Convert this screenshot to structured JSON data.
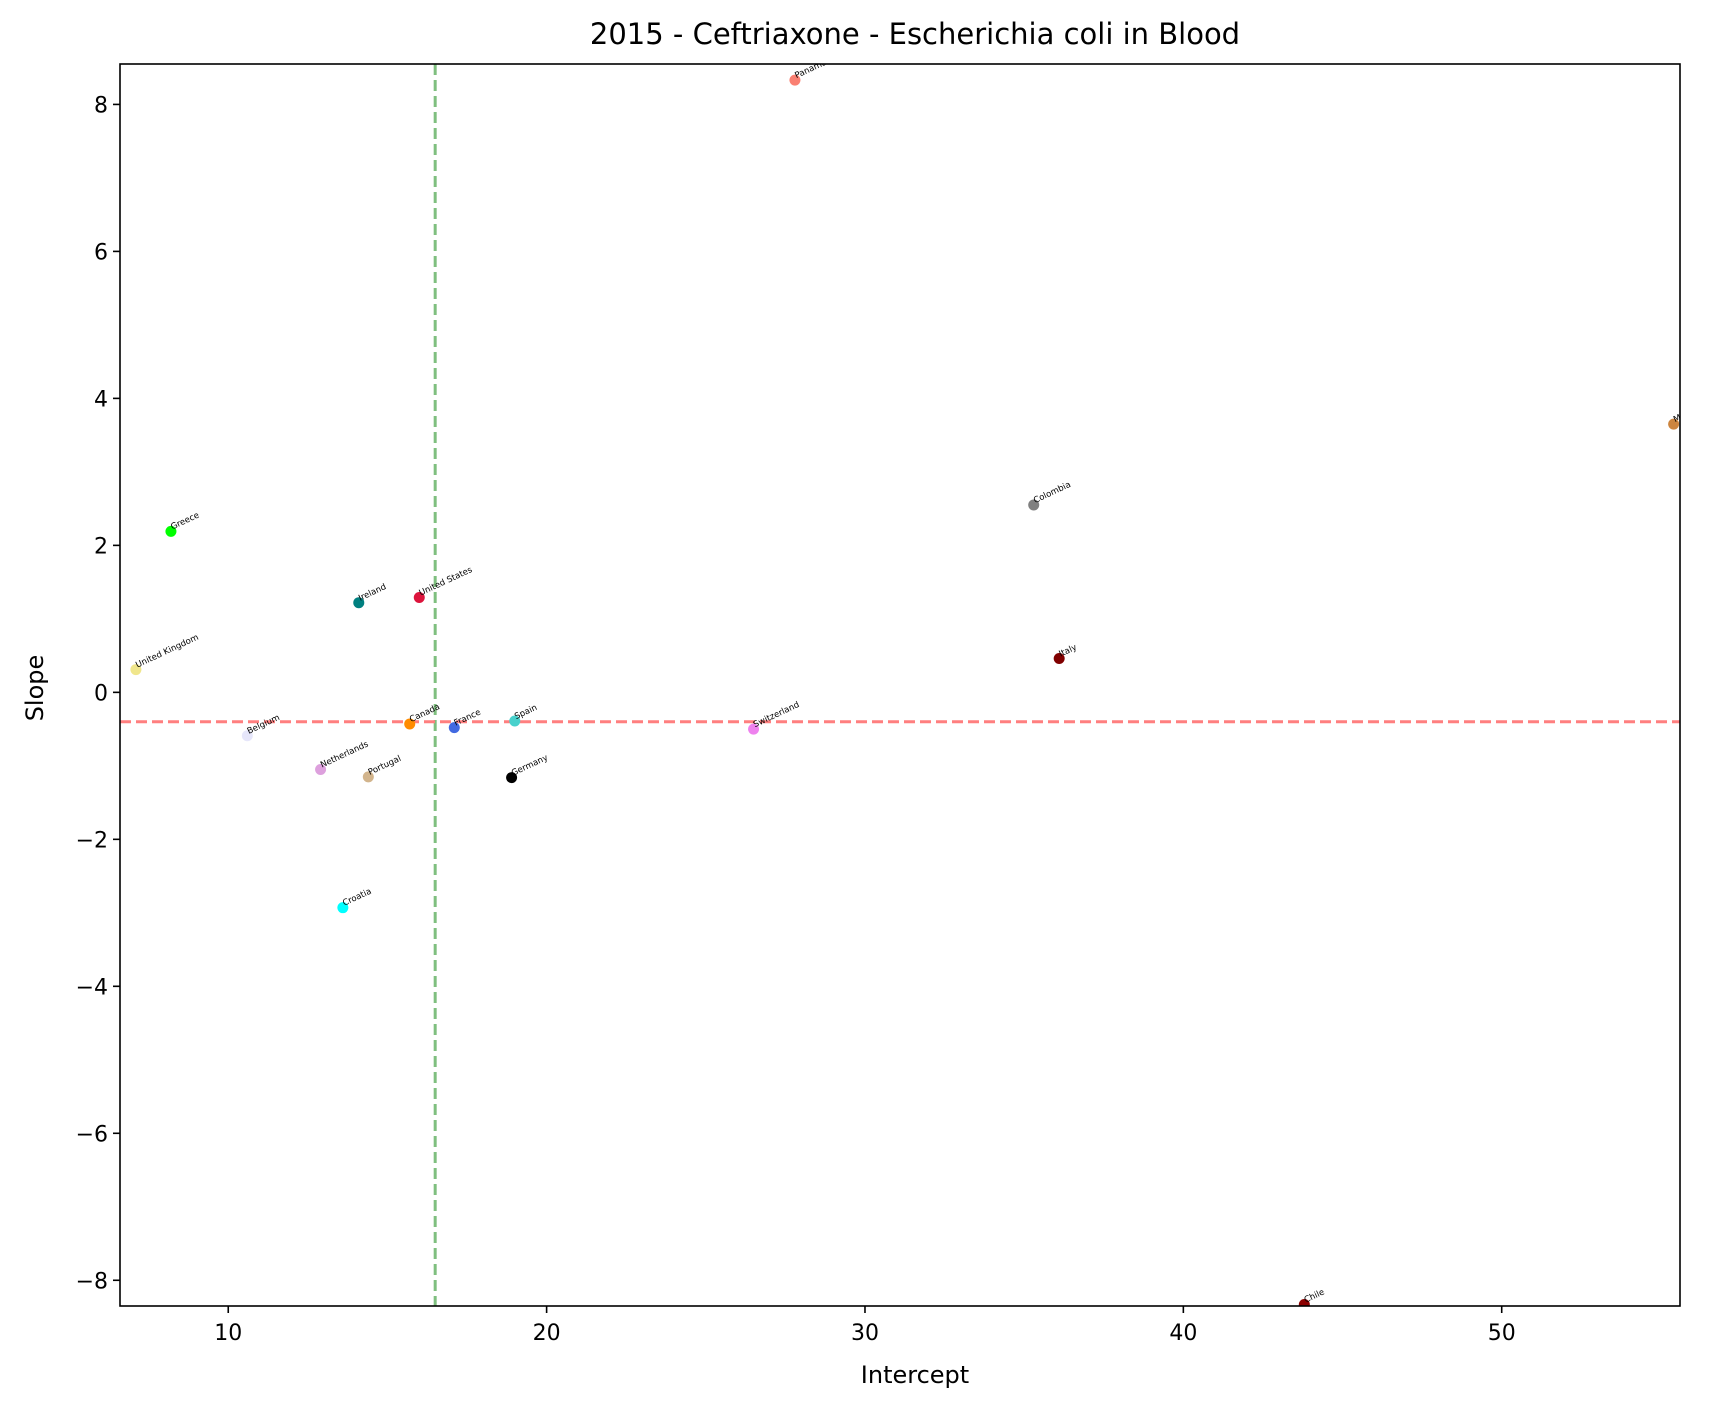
{
  "chart_data": {
    "type": "scatter",
    "title": "2015 - Ceftriaxone - Escherichia coli in Blood",
    "xlabel": "Intercept",
    "ylabel": "Slope",
    "xlim": [
      6.6,
      55.6
    ],
    "ylim": [
      -8.35,
      8.55
    ],
    "xticks": [
      10,
      20,
      30,
      40,
      50
    ],
    "yticks": [
      -8,
      -6,
      -4,
      -2,
      0,
      2,
      4,
      6,
      8
    ],
    "ytick_labels": [
      "−8",
      "−6",
      "−4",
      "−2",
      "0",
      "2",
      "4",
      "6",
      "8"
    ],
    "grid": false,
    "reference_lines": [
      {
        "orientation": "vertical",
        "x": 16.5,
        "color": "#7fbf7f",
        "style": "dashed"
      },
      {
        "orientation": "horizontal",
        "y": -0.4,
        "color": "#ff7f7f",
        "style": "dashed"
      }
    ],
    "points": [
      {
        "label": "Panama",
        "x": 27.8,
        "y": 8.33,
        "color": "#fa8072"
      },
      {
        "label": "Mexico",
        "x": 55.4,
        "y": 3.65,
        "color": "#cd853f"
      },
      {
        "label": "Colombia",
        "x": 35.3,
        "y": 2.55,
        "color": "#808080"
      },
      {
        "label": "Greece",
        "x": 8.2,
        "y": 2.19,
        "color": "#00ff00"
      },
      {
        "label": "Ireland",
        "x": 14.1,
        "y": 1.22,
        "color": "#008080"
      },
      {
        "label": "United States",
        "x": 16.0,
        "y": 1.29,
        "color": "#dc143c"
      },
      {
        "label": "United Kingdom",
        "x": 7.1,
        "y": 0.31,
        "color": "#f0e68c"
      },
      {
        "label": "Italy",
        "x": 36.1,
        "y": 0.46,
        "color": "#800000"
      },
      {
        "label": "Canada",
        "x": 15.7,
        "y": -0.43,
        "color": "#ff8c00"
      },
      {
        "label": "France",
        "x": 17.1,
        "y": -0.48,
        "color": "#4169e1"
      },
      {
        "label": "Spain",
        "x": 19.0,
        "y": -0.39,
        "color": "#48d1cc"
      },
      {
        "label": "Switzerland",
        "x": 26.5,
        "y": -0.5,
        "color": "#ee82ee"
      },
      {
        "label": "Belgium",
        "x": 10.6,
        "y": -0.59,
        "color": "#e6e6fa"
      },
      {
        "label": "Netherlands",
        "x": 12.9,
        "y": -1.05,
        "color": "#dda0dd"
      },
      {
        "label": "Portugal",
        "x": 14.4,
        "y": -1.15,
        "color": "#d2b48c"
      },
      {
        "label": "Germany",
        "x": 18.9,
        "y": -1.16,
        "color": "#000000"
      },
      {
        "label": "Croatia",
        "x": 13.6,
        "y": -2.93,
        "color": "#00ffff"
      },
      {
        "label": "Chile",
        "x": 43.8,
        "y": -8.33,
        "color": "#8b0000"
      }
    ]
  }
}
